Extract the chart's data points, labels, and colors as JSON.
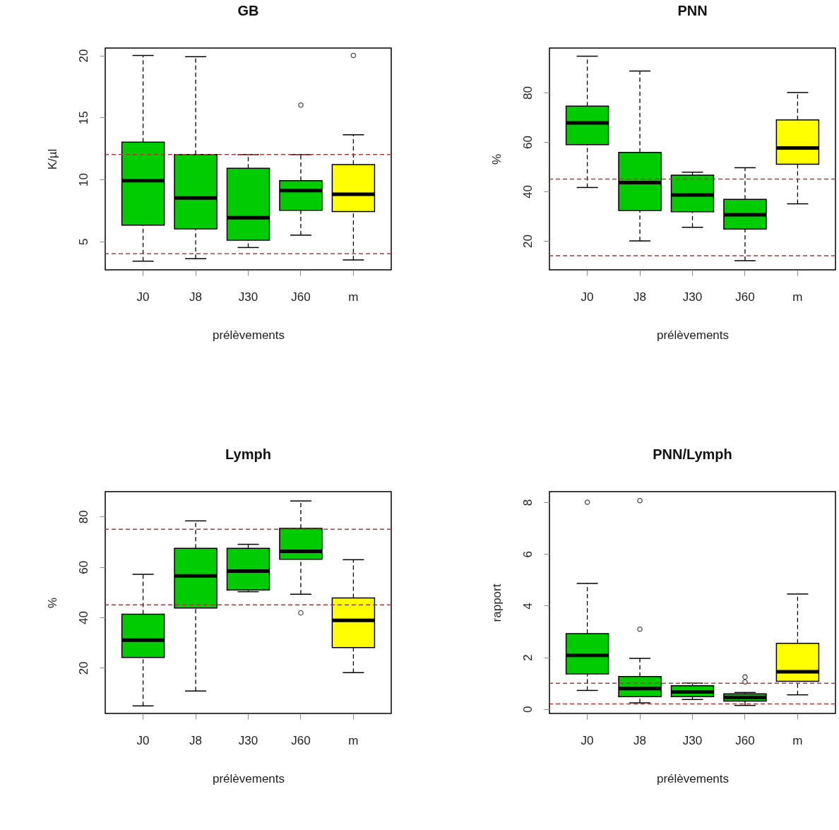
{
  "chart_data": [
    {
      "type": "box",
      "title": "GB",
      "xlabel": "prélèvements",
      "ylabel": "K/µl",
      "categories": [
        "J0",
        "J8",
        "J30",
        "J60",
        "m"
      ],
      "colors": [
        "#00cc00",
        "#00cc00",
        "#00cc00",
        "#00cc00",
        "#ffff00"
      ],
      "ylim": [
        2.7,
        20.6
      ],
      "yticks": [
        5,
        10,
        15,
        20
      ],
      "grid": false,
      "boxes": [
        {
          "low": 3.4,
          "q1": 6.3,
          "median": 9.9,
          "q3": 13.0,
          "high": 20
        },
        {
          "low": 3.6,
          "q1": 6.0,
          "median": 8.5,
          "q3": 12.0,
          "high": 19.9
        },
        {
          "low": 4.5,
          "q1": 5.1,
          "median": 6.9,
          "q3": 10.9,
          "high": 12.0
        },
        {
          "low": 5.5,
          "q1": 7.5,
          "median": 9.1,
          "q3": 9.9,
          "high": 12.0,
          "outliers": [
            16.0
          ]
        },
        {
          "low": 3.5,
          "q1": 7.4,
          "median": 8.8,
          "q3": 11.2,
          "high": 13.6,
          "outliers": [
            20.0
          ]
        }
      ],
      "ref_lines": [
        {
          "axis": "y",
          "value": 12,
          "color": "#b03a3a",
          "line_style": "dashed"
        },
        {
          "axis": "y",
          "value": 4,
          "color": "#b03a3a",
          "line_style": "dashed"
        }
      ]
    },
    {
      "type": "box",
      "title": "PNN",
      "xlabel": "prélèvements",
      "ylabel": "%",
      "categories": [
        "J0",
        "J8",
        "J30",
        "J60",
        "m"
      ],
      "colors": [
        "#00cc00",
        "#00cc00",
        "#00cc00",
        "#00cc00",
        "#ffff00"
      ],
      "ylim": [
        8.3,
        98
      ],
      "yticks": [
        20,
        40,
        60,
        80
      ],
      "grid": false,
      "boxes": [
        {
          "low": 41.6,
          "q1": 58.9,
          "median": 67.7,
          "q3": 74.5,
          "high": 94.7
        },
        {
          "low": 20,
          "q1": 32.3,
          "median": 43.6,
          "q3": 55.8,
          "high": 88.7
        },
        {
          "low": 25.5,
          "q1": 31.8,
          "median": 38.6,
          "q3": 46.6,
          "high": 47.8
        },
        {
          "low": 12,
          "q1": 24.8,
          "median": 30.6,
          "q3": 36.8,
          "high": 49.6
        },
        {
          "low": 35,
          "q1": 51,
          "median": 57.6,
          "q3": 68.9,
          "high": 80
        }
      ],
      "ref_lines": [
        {
          "axis": "y",
          "value": 45,
          "color": "#b03a3a",
          "line_style": "dashed"
        },
        {
          "axis": "y",
          "value": 14,
          "color": "#b03a3a",
          "line_style": "dashed"
        }
      ]
    },
    {
      "type": "box",
      "title": "Lymph",
      "xlabel": "prélèvements",
      "ylabel": "%",
      "categories": [
        "J0",
        "J8",
        "J30",
        "J60",
        "m"
      ],
      "colors": [
        "#00cc00",
        "#00cc00",
        "#00cc00",
        "#00cc00",
        "#ffff00"
      ],
      "ylim": [
        1.9,
        89.9
      ],
      "yticks": [
        20,
        40,
        60,
        80
      ],
      "grid": false,
      "boxes": [
        {
          "low": 4.9,
          "q1": 24.1,
          "median": 31,
          "q3": 41.3,
          "high": 57.1
        },
        {
          "low": 10.8,
          "q1": 43.7,
          "median": 56.5,
          "q3": 67.4,
          "high": 78.3
        },
        {
          "low": 50.2,
          "q1": 50.9,
          "median": 58.4,
          "q3": 67.4,
          "high": 69
        },
        {
          "low": 49.2,
          "q1": 63.1,
          "median": 66.2,
          "q3": 75.3,
          "high": 86.2,
          "outliers": [
            41.8
          ]
        },
        {
          "low": 18.1,
          "q1": 28,
          "median": 38.8,
          "q3": 47.7,
          "high": 62.9
        }
      ],
      "ref_lines": [
        {
          "axis": "y",
          "value": 75,
          "color": "#b03a3a",
          "line_style": "dashed"
        },
        {
          "axis": "y",
          "value": 45,
          "color": "#b03a3a",
          "line_style": "dashed"
        }
      ]
    },
    {
      "type": "box",
      "title": "PNN/Lymph",
      "xlabel": "prélèvements",
      "ylabel": "rapport",
      "categories": [
        "J0",
        "J8",
        "J30",
        "J60",
        "m"
      ],
      "colors": [
        "#00cc00",
        "#00cc00",
        "#00cc00",
        "#00cc00",
        "#ffff00"
      ],
      "ylim": [
        -0.17,
        8.41
      ],
      "yticks": [
        0,
        2,
        4,
        6,
        8
      ],
      "grid": false,
      "boxes": [
        {
          "low": 0.72,
          "q1": 1.36,
          "median": 2.08,
          "q3": 2.92,
          "high": 4.86,
          "outliers": [
            8.0
          ]
        },
        {
          "low": 0.24,
          "q1": 0.48,
          "median": 0.79,
          "q3": 1.26,
          "high": 1.96,
          "outliers": [
            8.06,
            3.09
          ]
        },
        {
          "low": 0.37,
          "q1": 0.48,
          "median": 0.66,
          "q3": 0.9,
          "high": 1.0
        },
        {
          "low": 0.14,
          "q1": 0.31,
          "median": 0.45,
          "q3": 0.59,
          "high": 0.64,
          "outliers": [
            1.24,
            1.05
          ]
        },
        {
          "low": 0.55,
          "q1": 1.07,
          "median": 1.44,
          "q3": 2.54,
          "high": 4.45
        }
      ],
      "ref_lines": [
        {
          "axis": "y",
          "value": 1,
          "color": "#b03a3a",
          "line_style": "dashed"
        },
        {
          "axis": "y",
          "value": 0.2,
          "color": "#b03a3a",
          "line_style": "dashed"
        }
      ]
    }
  ]
}
